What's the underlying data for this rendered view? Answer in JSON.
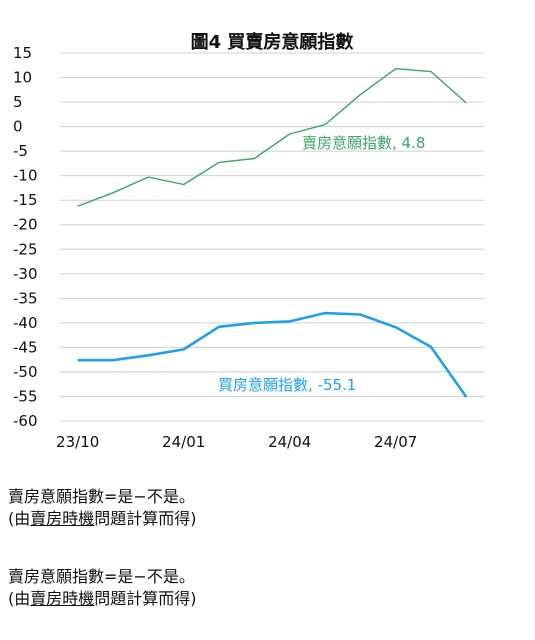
{
  "chart_data": {
    "type": "line",
    "title": "圖4 買賣房意願指數",
    "xlabel": "",
    "ylabel": "",
    "ylim": [
      -60,
      15
    ],
    "yticks": [
      15,
      10,
      5,
      0,
      -5,
      -10,
      -15,
      -20,
      -25,
      -30,
      -35,
      -40,
      -45,
      -50,
      -55,
      -60
    ],
    "xticks": [
      "23/10",
      "24/01",
      "24/04",
      "24/07"
    ],
    "x": [
      "23/10",
      "23/11",
      "23/12",
      "24/01",
      "24/02",
      "24/03",
      "24/04",
      "24/05",
      "24/06",
      "24/07",
      "24/08",
      "24/09"
    ],
    "grid": true,
    "series": [
      {
        "name": "賣房意願指數",
        "color": "#3aa564",
        "values": [
          -16.2,
          -13.5,
          -10.3,
          -11.8,
          -7.3,
          -6.5,
          -1.5,
          0.4,
          6.5,
          11.8,
          11.2,
          4.8
        ],
        "label": "賣房意願指數, 4.8"
      },
      {
        "name": "買房意願指數",
        "color": "#1fa0e8",
        "values": [
          -47.6,
          -47.6,
          -46.6,
          -45.4,
          -40.8,
          -40.0,
          -39.7,
          -38.0,
          -38.3,
          -40.9,
          -44.9,
          -55.1
        ],
        "label": "買房意願指數, -55.1"
      }
    ]
  },
  "notes": [
    {
      "formula": "賣房意願指數=是−不是。",
      "paren_open": "(由",
      "paren_u": "賣房時機",
      "paren_close": "問題計算而得)"
    },
    {
      "formula": "賣房意願指數=是−不是。",
      "paren_open": "(由",
      "paren_u": "賣房時機",
      "paren_close": "問題計算而得)"
    }
  ]
}
